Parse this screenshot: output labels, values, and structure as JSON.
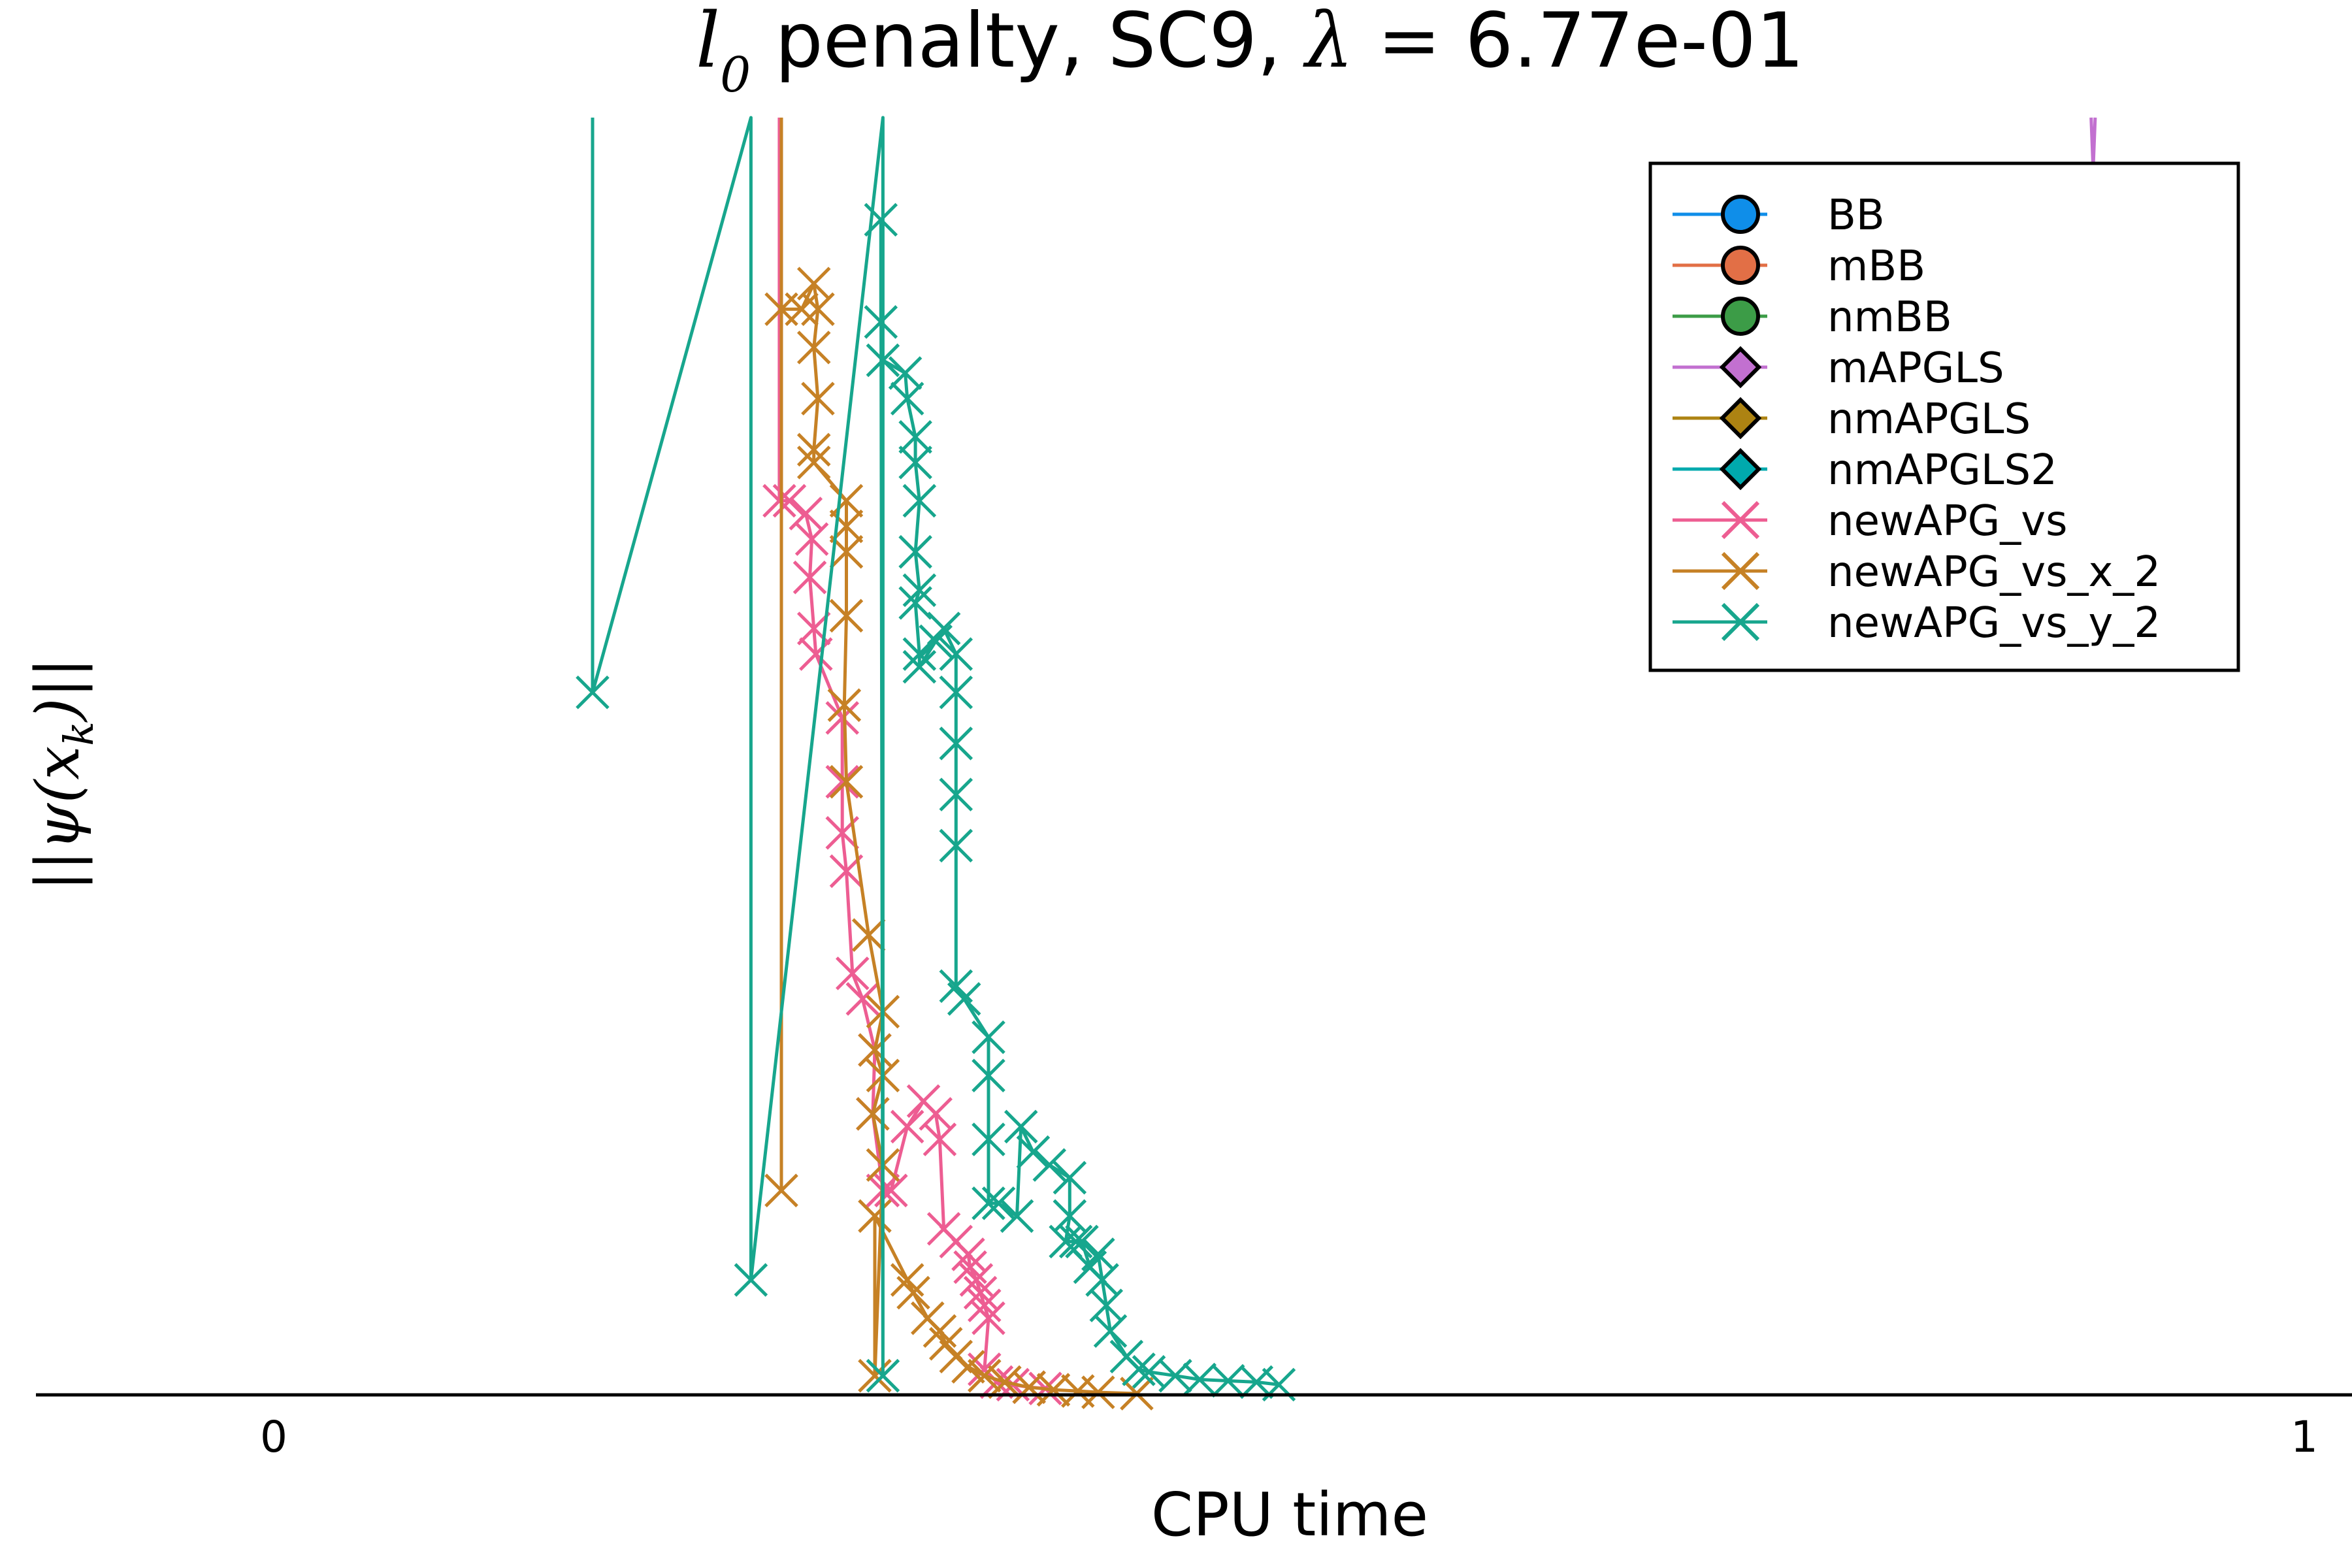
{
  "chart_data": {
    "type": "line",
    "title_prefix": "l",
    "title_sub": "0",
    "title_mid": " penalty, SC9, ",
    "title_lambda": "λ = ",
    "title_value": "6.77e-01",
    "xlabel": "CPU time",
    "ylabel": "||ψ(x",
    "ylabel_sub": "k",
    "ylabel_end": ")||",
    "x_ticks": [
      {
        "value": 0,
        "label": "0"
      },
      {
        "value": 1,
        "label": "1"
      }
    ],
    "xlim": [
      -0.115,
      1.0
    ],
    "ylim": [
      0,
      1
    ],
    "grid": false,
    "legend_position": "top-right",
    "series": [
      {
        "name": "BB",
        "color": "#0f8ee9",
        "marker": "circle",
        "points": []
      },
      {
        "name": "mBB",
        "color": "#e26f46",
        "marker": "circle",
        "points": []
      },
      {
        "name": "nmBB",
        "color": "#3c9c47",
        "marker": "circle",
        "points": []
      },
      {
        "name": "mAPGLS",
        "color": "#c270d0",
        "marker": "diamond",
        "points": [
          [
            0.895,
            1.0
          ],
          [
            0.896,
            0.96
          ],
          [
            0.897,
            1.0
          ]
        ]
      },
      {
        "name": "nmAPGLS",
        "color": "#ad8312",
        "marker": "diamond",
        "points": []
      },
      {
        "name": "nmAPGLS2",
        "color": "#00a9ad",
        "marker": "diamond",
        "points": []
      },
      {
        "name": "newAPG_vs",
        "color": "#ed5d92",
        "marker": "cross",
        "markerEvery": true,
        "points": [
          [
            0.249,
            1.0
          ],
          [
            0.249,
            0.7
          ],
          [
            0.254,
            0.7
          ],
          [
            0.262,
            0.69
          ],
          [
            0.265,
            0.67
          ],
          [
            0.264,
            0.64
          ],
          [
            0.266,
            0.6
          ],
          [
            0.267,
            0.58
          ],
          [
            0.28,
            0.53
          ],
          [
            0.28,
            0.48
          ],
          [
            0.28,
            0.44
          ],
          [
            0.282,
            0.41
          ],
          [
            0.285,
            0.33
          ],
          [
            0.29,
            0.31
          ],
          [
            0.296,
            0.27
          ],
          [
            0.295,
            0.22
          ],
          [
            0.3,
            0.16
          ],
          [
            0.304,
            0.16
          ],
          [
            0.312,
            0.21
          ],
          [
            0.32,
            0.23
          ],
          [
            0.326,
            0.22
          ],
          [
            0.328,
            0.2
          ],
          [
            0.33,
            0.13
          ],
          [
            0.336,
            0.12
          ],
          [
            0.342,
            0.11
          ],
          [
            0.343,
            0.1
          ],
          [
            0.346,
            0.09
          ],
          [
            0.348,
            0.08
          ],
          [
            0.35,
            0.07
          ],
          [
            0.352,
            0.06
          ],
          [
            0.35,
            0.02
          ],
          [
            0.356,
            0.01
          ],
          [
            0.364,
            0.008
          ],
          [
            0.372,
            0.006
          ],
          [
            0.38,
            0.005
          ]
        ]
      },
      {
        "name": "newAPG_vs_x_2",
        "color": "#c68125",
        "marker": "cross",
        "markerEvery": true,
        "points": [
          [
            0.25,
            1.0
          ],
          [
            0.25,
            0.16
          ],
          [
            0.25,
            0.85
          ],
          [
            0.26,
            0.85
          ],
          [
            0.266,
            0.87
          ],
          [
            0.268,
            0.85
          ],
          [
            0.266,
            0.82
          ],
          [
            0.268,
            0.78
          ],
          [
            0.266,
            0.74
          ],
          [
            0.266,
            0.73
          ],
          [
            0.282,
            0.7
          ],
          [
            0.282,
            0.68
          ],
          [
            0.282,
            0.66
          ],
          [
            0.282,
            0.61
          ],
          [
            0.281,
            0.54
          ],
          [
            0.282,
            0.48
          ],
          [
            0.293,
            0.36
          ],
          [
            0.3,
            0.3
          ],
          [
            0.296,
            0.27
          ],
          [
            0.3,
            0.25
          ],
          [
            0.295,
            0.22
          ],
          [
            0.3,
            0.18
          ],
          [
            0.296,
            0.015
          ],
          [
            0.296,
            0.14
          ],
          [
            0.312,
            0.09
          ],
          [
            0.315,
            0.08
          ],
          [
            0.322,
            0.06
          ],
          [
            0.328,
            0.05
          ],
          [
            0.331,
            0.04
          ],
          [
            0.336,
            0.03
          ],
          [
            0.342,
            0.022
          ],
          [
            0.35,
            0.015
          ],
          [
            0.36,
            0.01
          ],
          [
            0.372,
            0.006
          ],
          [
            0.384,
            0.004
          ],
          [
            0.396,
            0.003
          ],
          [
            0.406,
            0.002
          ],
          [
            0.425,
            0.001
          ]
        ]
      },
      {
        "name": "newAPG_vs_y_2",
        "color": "#17a68d",
        "marker": "cross",
        "markerEvery": true,
        "points": [
          [
            0.157,
            1.0
          ],
          [
            0.157,
            0.55
          ],
          [
            0.235,
            1.0
          ],
          [
            0.235,
            0.09
          ],
          [
            0.3,
            1.0
          ],
          [
            0.3,
            0.015
          ],
          [
            0.299,
            0.92
          ],
          [
            0.299,
            0.84
          ],
          [
            0.3,
            0.81
          ],
          [
            0.311,
            0.8
          ],
          [
            0.312,
            0.78
          ],
          [
            0.316,
            0.75
          ],
          [
            0.316,
            0.73
          ],
          [
            0.318,
            0.7
          ],
          [
            0.316,
            0.66
          ],
          [
            0.318,
            0.63
          ],
          [
            0.316,
            0.62
          ],
          [
            0.318,
            0.58
          ],
          [
            0.318,
            0.57
          ],
          [
            0.326,
            0.59
          ],
          [
            0.33,
            0.6
          ],
          [
            0.336,
            0.58
          ],
          [
            0.336,
            0.55
          ],
          [
            0.336,
            0.51
          ],
          [
            0.336,
            0.47
          ],
          [
            0.336,
            0.43
          ],
          [
            0.336,
            0.32
          ],
          [
            0.34,
            0.31
          ],
          [
            0.352,
            0.28
          ],
          [
            0.352,
            0.25
          ],
          [
            0.352,
            0.2
          ],
          [
            0.352,
            0.15
          ],
          [
            0.357,
            0.15
          ],
          [
            0.366,
            0.14
          ],
          [
            0.368,
            0.21
          ],
          [
            0.374,
            0.19
          ],
          [
            0.382,
            0.18
          ],
          [
            0.392,
            0.17
          ],
          [
            0.392,
            0.14
          ],
          [
            0.39,
            0.12
          ],
          [
            0.395,
            0.12
          ],
          [
            0.398,
            0.12
          ],
          [
            0.402,
            0.1
          ],
          [
            0.406,
            0.11
          ],
          [
            0.408,
            0.09
          ],
          [
            0.41,
            0.07
          ],
          [
            0.412,
            0.05
          ],
          [
            0.42,
            0.03
          ],
          [
            0.426,
            0.02
          ],
          [
            0.431,
            0.018
          ],
          [
            0.444,
            0.015
          ],
          [
            0.456,
            0.012
          ],
          [
            0.47,
            0.011
          ],
          [
            0.484,
            0.01
          ],
          [
            0.495,
            0.008
          ]
        ]
      }
    ]
  }
}
